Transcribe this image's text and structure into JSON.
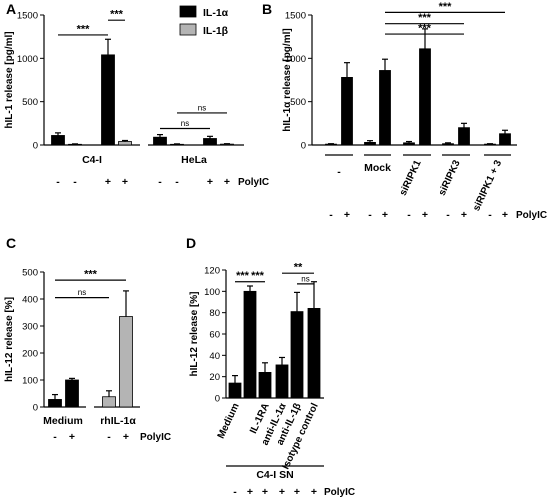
{
  "chart_data": [
    {
      "panel": "A",
      "type": "bar",
      "ylabel": "hIL-1 release [pg/ml]",
      "ylim": [
        0,
        1500
      ],
      "yticks": [
        "0",
        "500",
        "1000",
        "1500"
      ],
      "groups": [
        "C4-I",
        "HeLa"
      ],
      "series": [
        {
          "name": "IL-1α",
          "color": "#000000"
        },
        {
          "name": "IL-1β",
          "color": "#b4b4b4"
        }
      ],
      "bars": [
        {
          "group": "C4-I",
          "series": "IL-1α",
          "value": 110,
          "error": 30,
          "polyic": "-"
        },
        {
          "group": "C4-I",
          "series": "IL-1β",
          "value": 8,
          "error": 5,
          "polyic": "-"
        },
        {
          "group": "C4-I",
          "series": "IL-1α",
          "value": 1040,
          "error": 180,
          "polyic": "+"
        },
        {
          "group": "C4-I",
          "series": "IL-1β",
          "value": 40,
          "error": 12,
          "polyic": "+"
        },
        {
          "group": "HeLa",
          "series": "IL-1α",
          "value": 90,
          "error": 30,
          "polyic": "-"
        },
        {
          "group": "HeLa",
          "series": "IL-1β",
          "value": 8,
          "error": 5,
          "polyic": "-"
        },
        {
          "group": "HeLa",
          "series": "IL-1α",
          "value": 75,
          "error": 25,
          "polyic": "+"
        },
        {
          "group": "HeLa",
          "series": "IL-1β",
          "value": 10,
          "error": 5,
          "polyic": "+"
        }
      ],
      "polyic_label": "PolyIC",
      "significance": [
        {
          "from": 0,
          "to": 2,
          "label": "***",
          "y": 1270
        },
        {
          "from": 2,
          "to": 3,
          "label": "***",
          "y": 1440
        },
        {
          "from": 4,
          "to": 6,
          "label": "ns",
          "y": 190
        },
        {
          "from": 5,
          "to": 7,
          "label": "ns",
          "y": 370
        }
      ]
    },
    {
      "panel": "B",
      "type": "bar",
      "ylabel": "hIL-1α release [pg/ml]",
      "ylim": [
        0,
        1500
      ],
      "yticks": [
        "0",
        "500",
        "1000",
        "1500"
      ],
      "groups": [
        "-",
        "Mock",
        "siRIPK1",
        "siRIPK3",
        "siRIPK1 + 3"
      ],
      "series": [
        {
          "name": "IL-1α",
          "color": "#000000"
        }
      ],
      "bars": [
        {
          "group": "-",
          "value": 10,
          "error": 5,
          "polyic": "-"
        },
        {
          "group": "-",
          "value": 780,
          "error": 170,
          "polyic": "+"
        },
        {
          "group": "Mock",
          "value": 30,
          "error": 20,
          "polyic": "-"
        },
        {
          "group": "Mock",
          "value": 860,
          "error": 130,
          "polyic": "+"
        },
        {
          "group": "siRIPK1",
          "value": 25,
          "error": 15,
          "polyic": "-"
        },
        {
          "group": "siRIPK1",
          "value": 1110,
          "error": 230,
          "polyic": "+"
        },
        {
          "group": "siRIPK3",
          "value": 15,
          "error": 10,
          "polyic": "-"
        },
        {
          "group": "siRIPK3",
          "value": 200,
          "error": 50,
          "polyic": "+"
        },
        {
          "group": "siRIPK1 + 3",
          "value": 10,
          "error": 5,
          "polyic": "-"
        },
        {
          "group": "siRIPK1 + 3",
          "value": 130,
          "error": 40,
          "polyic": "+"
        }
      ],
      "polyic_label": "PolyIC",
      "significance": [
        {
          "from": 3,
          "to": 7,
          "label": "***",
          "y": 1280
        },
        {
          "from": 3,
          "to": 9,
          "label": "***",
          "y": 1530
        },
        {
          "from": 3,
          "to": 7,
          "label": "***",
          "y": 1400
        }
      ]
    },
    {
      "panel": "C",
      "type": "bar",
      "ylabel": "hIL-12 release [%]",
      "ylim": [
        0,
        500
      ],
      "yticks": [
        "0",
        "100",
        "200",
        "300",
        "400",
        "500"
      ],
      "groups": [
        "Medium",
        "rhIL-1α"
      ],
      "bars": [
        {
          "group": "Medium",
          "value": 28,
          "error": 18,
          "polyic": "-",
          "color": "#000000"
        },
        {
          "group": "Medium",
          "value": 100,
          "error": 6,
          "polyic": "+",
          "color": "#000000"
        },
        {
          "group": "rhIL-1α",
          "value": 38,
          "error": 22,
          "polyic": "-",
          "color": "#b4b4b4"
        },
        {
          "group": "rhIL-1α",
          "value": 335,
          "error": 95,
          "polyic": "+",
          "color": "#b4b4b4"
        }
      ],
      "polyic_label": "PolyIC",
      "significance": [
        {
          "from": 0,
          "to": 3,
          "label": "***",
          "y": 470
        },
        {
          "from": 0,
          "to": 2,
          "label": "ns",
          "y": 405
        }
      ]
    },
    {
      "panel": "D",
      "type": "bar",
      "ylabel": "hIL-12 release [%]",
      "ylim": [
        0,
        120
      ],
      "yticks": [
        "0",
        "20",
        "40",
        "60",
        "80",
        "100",
        "120"
      ],
      "categories": [
        "Medium",
        "",
        "IL-1RA",
        "anti-IL-1α",
        "anti-IL-1β",
        "Isotype control"
      ],
      "bars": [
        {
          "value": 14,
          "error": 7,
          "polyic": "-"
        },
        {
          "value": 100,
          "error": 5,
          "polyic": "+"
        },
        {
          "value": 24,
          "error": 9,
          "polyic": "+"
        },
        {
          "value": 31,
          "error": 7,
          "polyic": "+"
        },
        {
          "value": 81,
          "error": 18,
          "polyic": "+"
        },
        {
          "value": 84,
          "error": 25,
          "polyic": "+"
        }
      ],
      "c4i_sn_label": "C4-I SN",
      "c4i_sn_signs": [
        "-",
        "+",
        "+",
        "+",
        "+",
        "+"
      ],
      "polyic_label": "PolyIC",
      "significance": [
        {
          "from": 0,
          "to": 1,
          "label": "***",
          "y": 109
        },
        {
          "from": 1,
          "to": 2,
          "label": "***",
          "y": 109
        },
        {
          "from": 3,
          "to": 5,
          "label": "**",
          "y": 117
        },
        {
          "from": 4,
          "to": 5,
          "label": "ns",
          "y": 107
        }
      ]
    }
  ]
}
